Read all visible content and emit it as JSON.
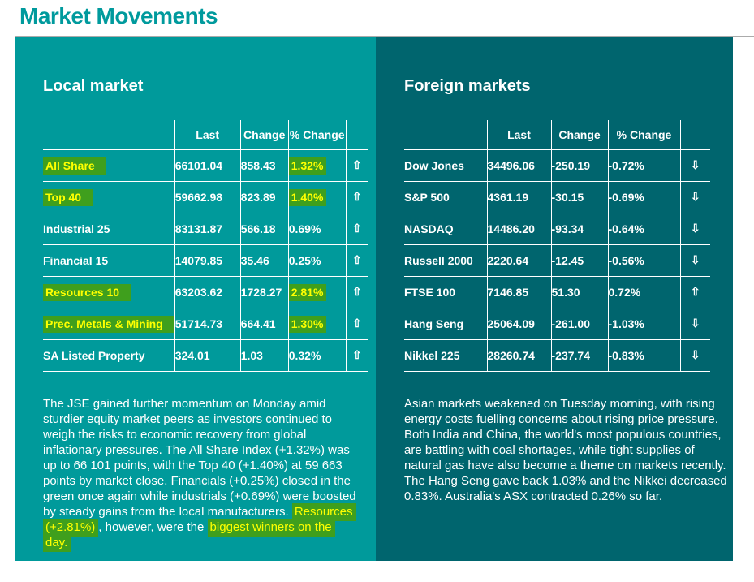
{
  "title": "Market Movements",
  "colors": {
    "accent": "#009a9d",
    "panel_local": "#009a9b",
    "panel_foreign": "#00656e",
    "highlight_bg": "#3f9f1d",
    "highlight_text": "#ffff00",
    "table_lines": "#ffffff",
    "title_rule": "#ababab"
  },
  "local": {
    "heading": "Local market",
    "columns": [
      "Last",
      "Change",
      "% Change"
    ],
    "rows": [
      {
        "label": "All Share",
        "label_highlight": true,
        "last": "66101.04",
        "change": "858.43",
        "pct_change": "1.32%",
        "pct_highlight": true,
        "direction": "up"
      },
      {
        "label": "Top 40",
        "label_highlight": true,
        "last": "59662.98",
        "change": "823.89",
        "pct_change": "1.40%",
        "pct_highlight": true,
        "direction": "up"
      },
      {
        "label": "Industrial 25",
        "label_highlight": false,
        "last": "83131.87",
        "change": "566.18",
        "pct_change": "0.69%",
        "pct_highlight": false,
        "direction": "up"
      },
      {
        "label": "Financial 15",
        "label_highlight": false,
        "last": "14079.85",
        "change": "35.46",
        "pct_change": "0.25%",
        "pct_highlight": false,
        "direction": "up"
      },
      {
        "label": "Resources 10",
        "label_highlight": true,
        "last": "63203.62",
        "change": "1728.27",
        "pct_change": "2.81%",
        "pct_highlight": true,
        "direction": "up"
      },
      {
        "label": "Prec. Metals & Mining",
        "label_highlight": true,
        "last": "51714.73",
        "change": "664.41",
        "pct_change": "1.30%",
        "pct_highlight": true,
        "direction": "up"
      },
      {
        "label": "SA Listed Property",
        "label_highlight": false,
        "last": "324.01",
        "change": "1.03",
        "pct_change": "0.32%",
        "pct_highlight": false,
        "direction": "up"
      }
    ],
    "commentary": [
      {
        "text": "The JSE gained further momentum on Monday amid sturdier equity market peers as investors continued to weigh the risks to economic recovery from global inflationary pressures. The All Share Index (+1.32%) was up to 66 101 points, with the Top 40 (+1.40%) at 59 663 points by market close. Financials (+0.25%) closed in the green once again while industrials (+0.69%) were boosted by steady gains from the local manufacturers. ",
        "highlight": false
      },
      {
        "text": "Resources (+2.81%)",
        "highlight": true
      },
      {
        "text": ", however, were the ",
        "highlight": false
      },
      {
        "text": "biggest winners on the day.",
        "highlight": true
      }
    ]
  },
  "foreign": {
    "heading": "Foreign markets",
    "columns": [
      "Last",
      "Change",
      "% Change"
    ],
    "rows": [
      {
        "label": "Dow Jones",
        "label_highlight": false,
        "last": "34496.06",
        "change": "-250.19",
        "pct_change": "-0.72%",
        "pct_highlight": false,
        "direction": "down"
      },
      {
        "label": "S&P 500",
        "label_highlight": false,
        "last": "4361.19",
        "change": "-30.15",
        "pct_change": "-0.69%",
        "pct_highlight": false,
        "direction": "down"
      },
      {
        "label": "NASDAQ",
        "label_highlight": false,
        "last": "14486.20",
        "change": "-93.34",
        "pct_change": "-0.64%",
        "pct_highlight": false,
        "direction": "down"
      },
      {
        "label": "Russell 2000",
        "label_highlight": false,
        "last": "2220.64",
        "change": "-12.45",
        "pct_change": "-0.56%",
        "pct_highlight": false,
        "direction": "down"
      },
      {
        "label": "FTSE 100",
        "label_highlight": false,
        "last": "7146.85",
        "change": "51.30",
        "pct_change": "0.72%",
        "pct_highlight": false,
        "direction": "up"
      },
      {
        "label": "Hang Seng",
        "label_highlight": false,
        "last": "25064.09",
        "change": "-261.00",
        "pct_change": "-1.03%",
        "pct_highlight": false,
        "direction": "down"
      },
      {
        "label": "Nikkel 225",
        "label_highlight": false,
        "last": "28260.74",
        "change": "-237.74",
        "pct_change": "-0.83%",
        "pct_highlight": false,
        "direction": "down"
      }
    ],
    "commentary": [
      {
        "text": "Asian markets weakened on Tuesday morning, with rising energy costs fuelling concerns about rising price pressure. Both India and China, the world's most populous countries, are battling with coal shortages, while tight supplies of natural gas have also become a theme on markets recently. The Hang Seng gave back 1.03% and the Nikkei decreased 0.83%. Australia's ASX contracted 0.26% so far.",
        "highlight": false
      }
    ]
  },
  "icons": {
    "up_arrow": "up-arrow-icon",
    "down_arrow": "down-arrow-icon"
  }
}
